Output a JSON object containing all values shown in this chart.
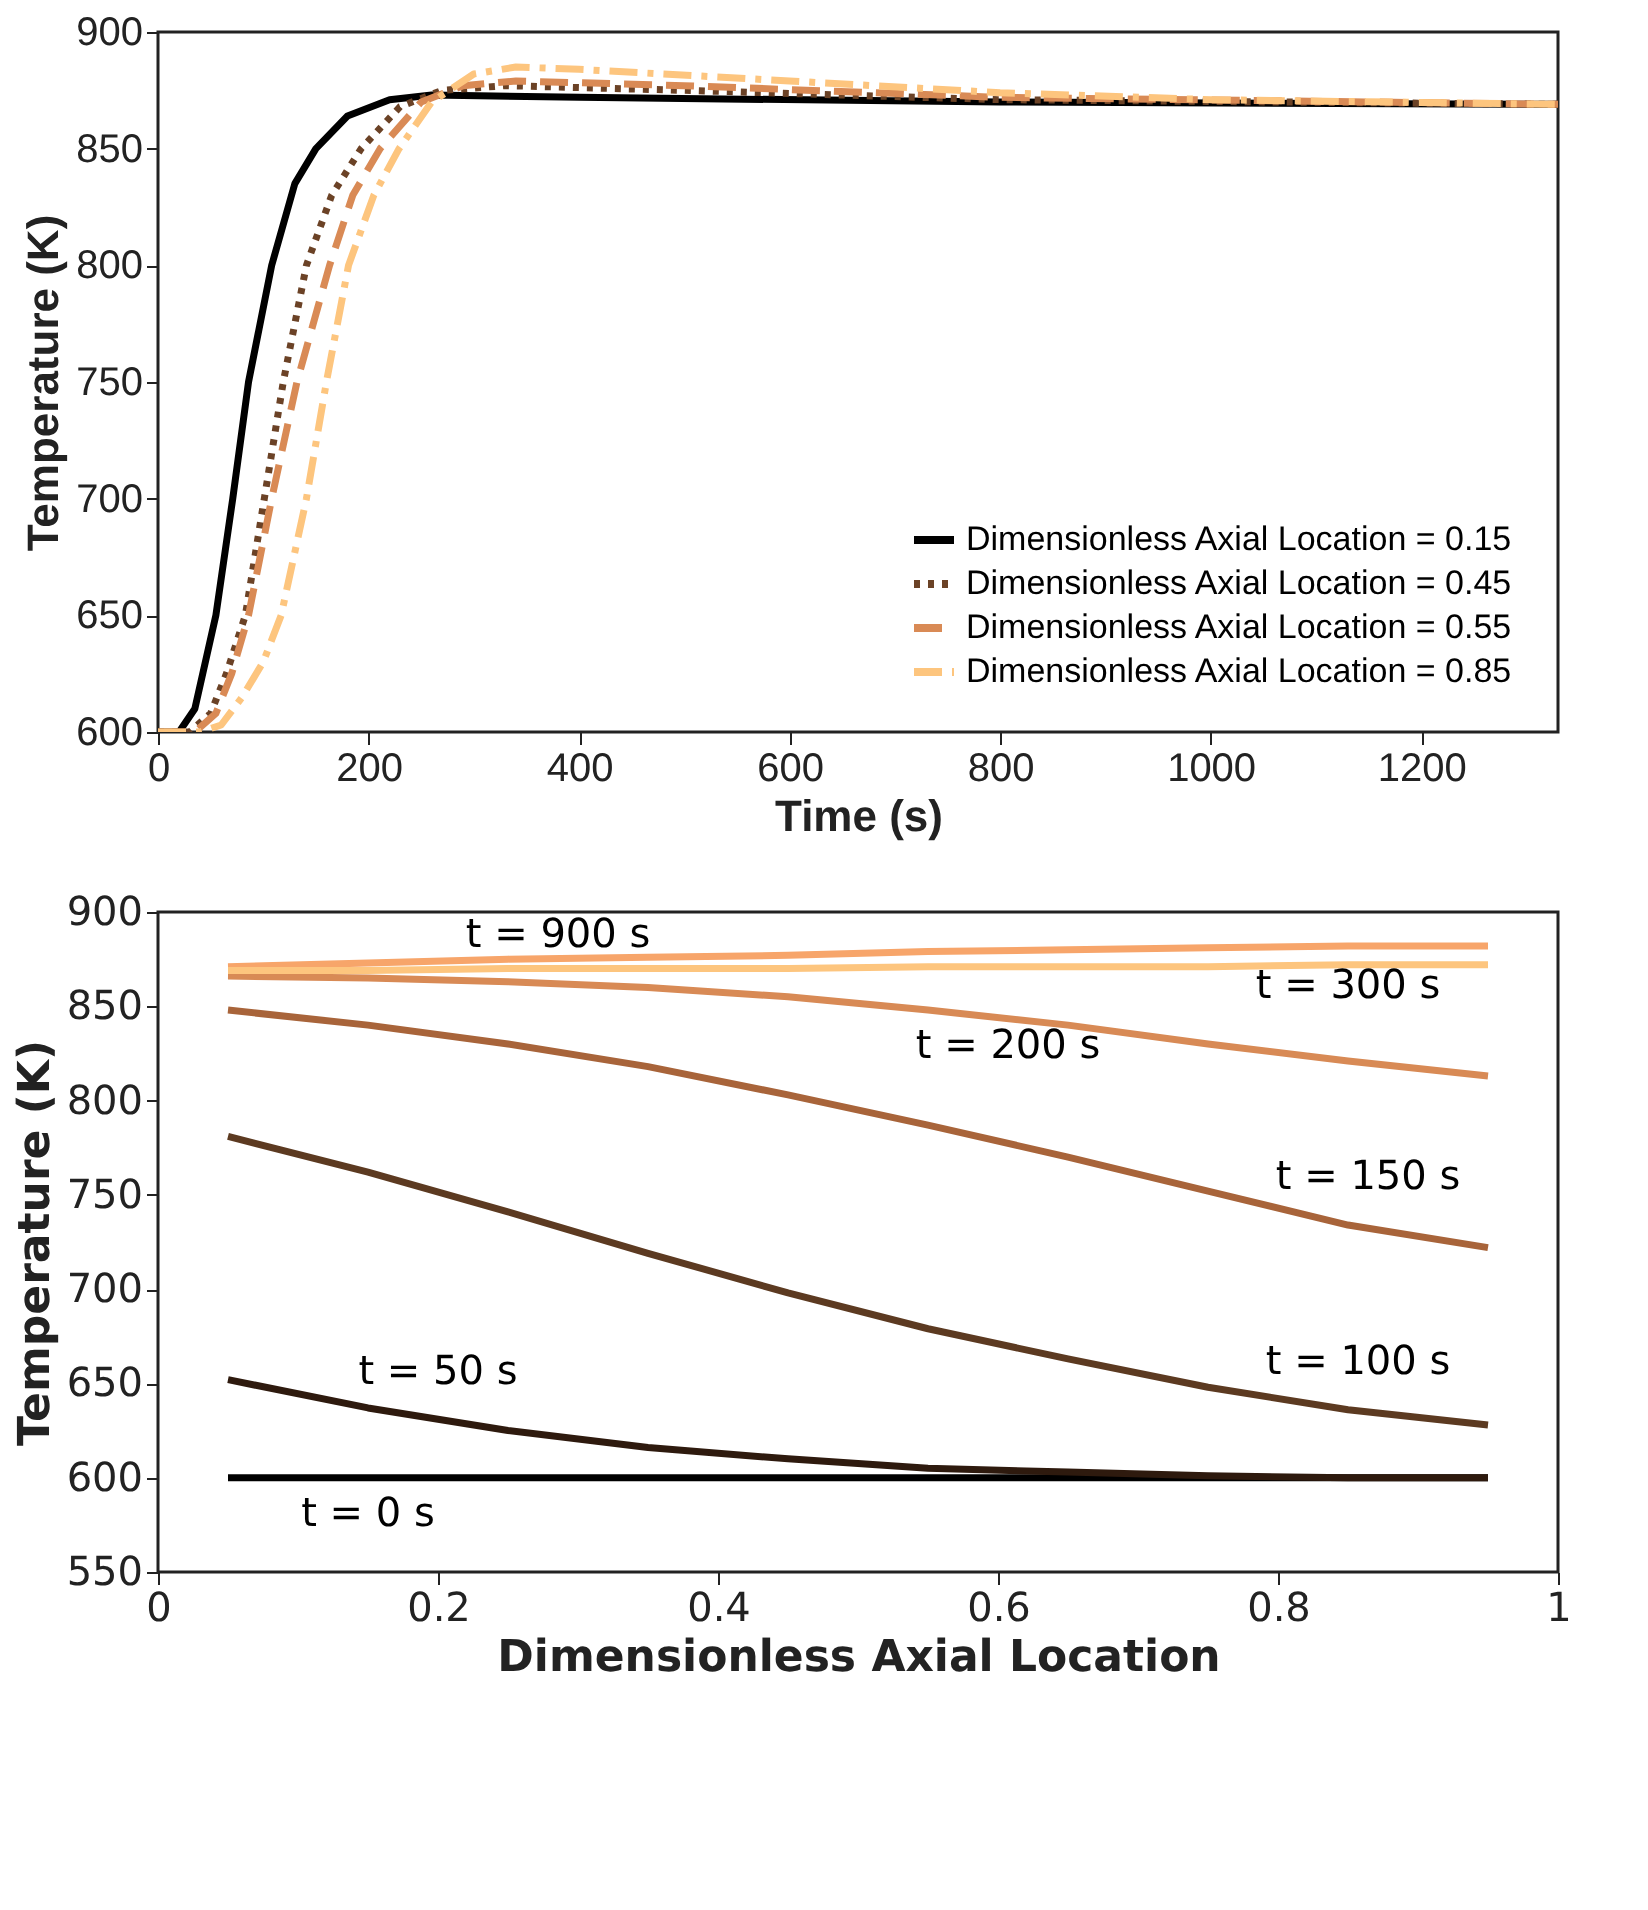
{
  "chart_data": [
    {
      "type": "line",
      "xlabel": "Time (s)",
      "ylabel": "Temperature (K)",
      "xlim": [
        0,
        1330
      ],
      "xticks": [
        0,
        200,
        400,
        600,
        800,
        1000,
        1200
      ],
      "ylim": [
        600,
        900
      ],
      "yticks": [
        600,
        650,
        700,
        750,
        800,
        850,
        900
      ],
      "grid": false,
      "legend": "bottom right",
      "marker": "none",
      "series": [
        {
          "name": "Dimensionless Axial Location = 0.15",
          "color": "#000000",
          "line_style": "solid",
          "x": [
            0,
            20,
            35,
            55,
            71,
            86,
            108,
            130,
            150,
            180,
            220,
            260,
            400,
            800,
            1330
          ],
          "values": [
            600,
            600,
            610,
            650,
            700,
            750,
            800,
            835,
            850,
            864,
            871,
            873,
            872,
            870,
            869
          ]
        },
        {
          "name": "Dimensionless Axial Location = 0.45",
          "color": "#6b4226",
          "line_style": "dotted",
          "x": [
            0,
            30,
            50,
            65,
            83,
            101,
            119,
            141,
            165,
            193,
            230,
            270,
            330,
            500,
            800,
            1330
          ],
          "values": [
            600,
            600,
            608,
            625,
            650,
            700,
            750,
            800,
            830,
            850,
            868,
            875,
            877,
            875,
            871,
            869
          ]
        },
        {
          "name": "Dimensionless Axial Location = 0.55",
          "color": "#d98a55",
          "line_style": "dashed",
          "x": [
            0,
            35,
            55,
            70,
            86,
            108,
            132,
            163,
            185,
            211,
            250,
            290,
            340,
            500,
            800,
            1330
          ],
          "values": [
            600,
            600,
            608,
            625,
            650,
            700,
            750,
            800,
            830,
            850,
            870,
            877,
            879,
            877,
            872,
            869
          ]
        },
        {
          "name": "Dimensionless Axial Location = 0.85",
          "color": "#fdc57e",
          "line_style": "dashdot",
          "x": [
            0,
            40,
            60,
            80,
            100,
            117,
            141,
            160,
            181,
            205,
            229,
            260,
            300,
            340,
            400,
            600,
            800,
            1000,
            1330
          ],
          "values": [
            600,
            600,
            603,
            615,
            630,
            650,
            700,
            750,
            800,
            830,
            850,
            870,
            882,
            885,
            884,
            879,
            874,
            871,
            869
          ]
        }
      ]
    },
    {
      "type": "line",
      "xlabel": "Dimensionless Axial Location",
      "ylabel": "Temperature (K)",
      "xlim": [
        0,
        1
      ],
      "xticks": [
        0,
        0.2,
        0.4,
        0.6,
        0.8,
        1
      ],
      "ylim": [
        550,
        900
      ],
      "yticks": [
        550,
        600,
        650,
        700,
        750,
        800,
        850,
        900
      ],
      "grid": false,
      "legend": false,
      "marker": "none",
      "line_style": "solid",
      "x": [
        0.05,
        0.15,
        0.25,
        0.35,
        0.45,
        0.55,
        0.65,
        0.75,
        0.85,
        0.95
      ],
      "series": [
        {
          "name": "t = 0 s",
          "color": "#000000",
          "values": [
            600,
            600,
            600,
            600,
            600,
            600,
            600,
            600,
            600,
            600
          ]
        },
        {
          "name": "t = 50 s",
          "color": "#2e1a0e",
          "values": [
            652,
            637,
            625,
            616,
            610,
            605,
            603,
            601,
            600,
            600
          ]
        },
        {
          "name": "t = 100 s",
          "color": "#5c3a21",
          "values": [
            781,
            762,
            741,
            719,
            698,
            679,
            663,
            648,
            636,
            628
          ]
        },
        {
          "name": "t = 150 s",
          "color": "#a8643a",
          "values": [
            848,
            840,
            830,
            818,
            803,
            787,
            770,
            752,
            734,
            722
          ]
        },
        {
          "name": "t = 200 s",
          "color": "#d88a55",
          "values": [
            866,
            865,
            863,
            860,
            855,
            848,
            840,
            830,
            821,
            813
          ]
        },
        {
          "name": "t = 300 s",
          "color": "#f7a56a",
          "values": [
            871,
            873,
            875,
            876,
            877,
            879,
            880,
            881,
            882,
            882
          ]
        },
        {
          "name": "t = 900 s",
          "color": "#fdc57e",
          "values": [
            869,
            869,
            870,
            870,
            870,
            871,
            871,
            871,
            872,
            872
          ]
        }
      ]
    }
  ]
}
